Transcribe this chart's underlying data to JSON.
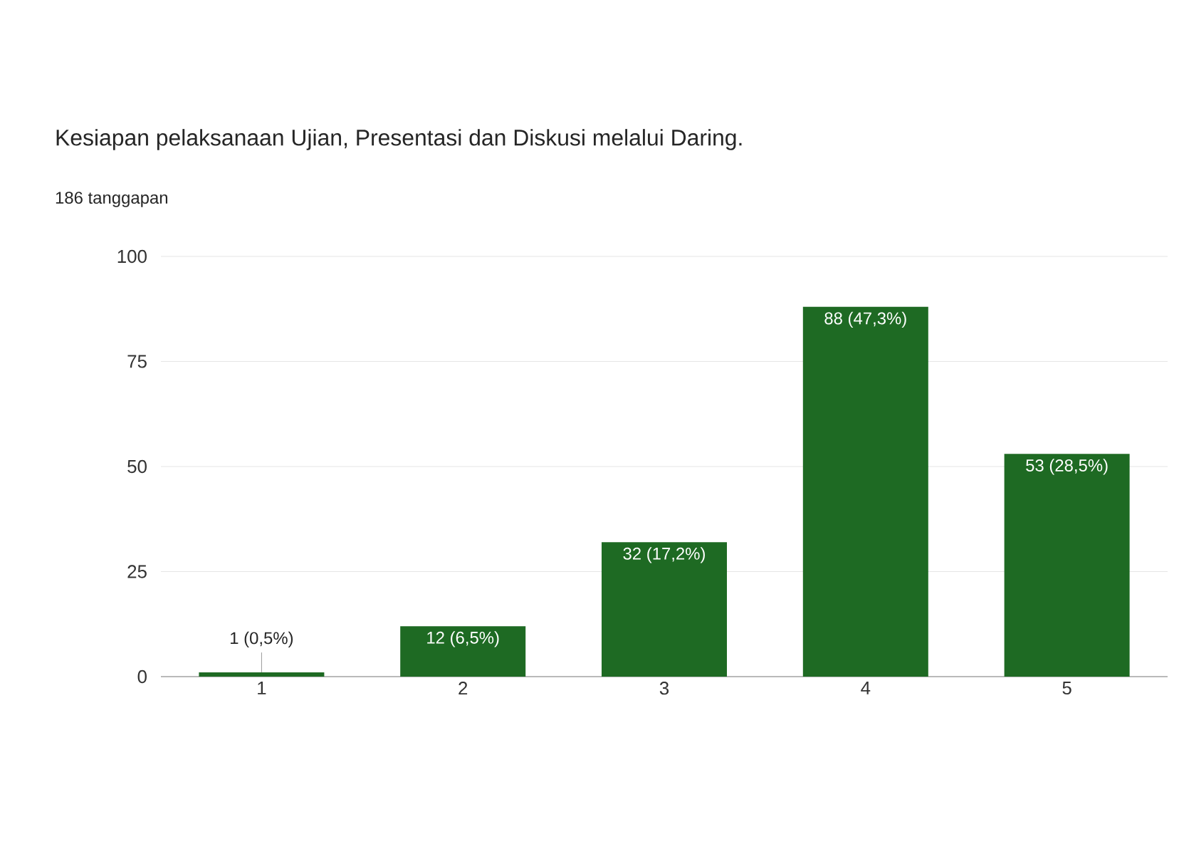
{
  "chart_data": {
    "type": "bar",
    "title": "Kesiapan pelaksanaan Ujian, Presentasi dan Diskusi melalui Daring.",
    "subtitle": "186 tanggapan",
    "categories": [
      "1",
      "2",
      "3",
      "4",
      "5"
    ],
    "values": [
      1,
      12,
      32,
      88,
      53
    ],
    "value_labels": [
      "1 (0,5%)",
      "12 (6,5%)",
      "32 (17,2%)",
      "88 (47,3%)",
      "53 (28,5%)"
    ],
    "color": "#1e6a23",
    "ylim": [
      0,
      100
    ],
    "yticks": [
      0,
      25,
      50,
      75,
      100
    ],
    "grid": "y"
  }
}
